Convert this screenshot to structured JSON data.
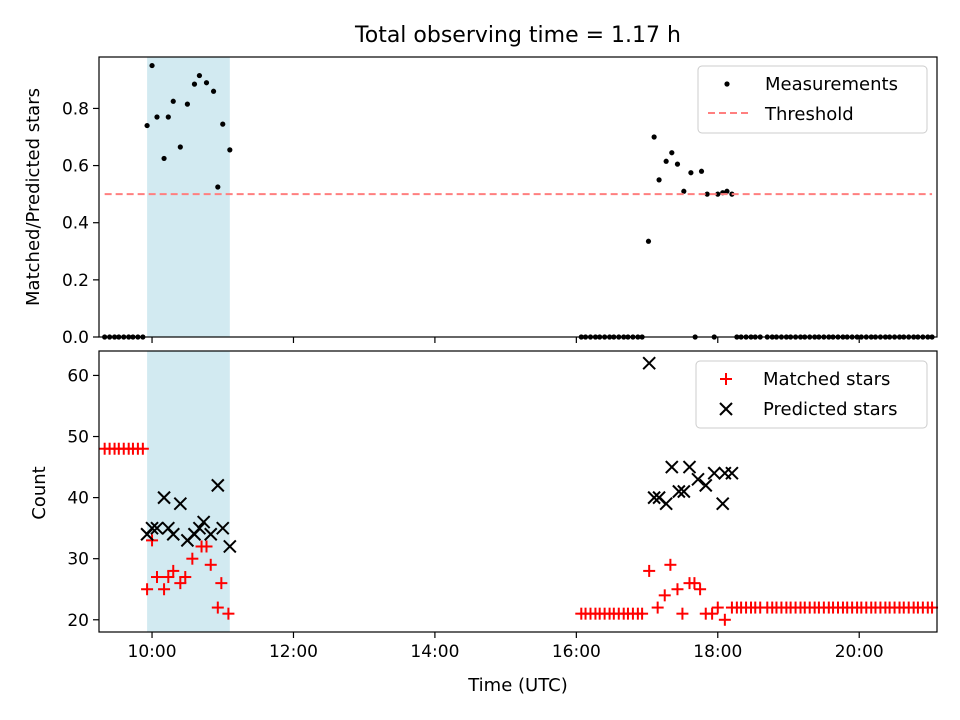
{
  "chart_data": [
    {
      "type": "scatter",
      "title": "Total observing time = 1.17 h",
      "xlabel": "",
      "ylabel": "Matched/Predicted stars",
      "xlim": [
        9.25,
        21.1
      ],
      "ylim": [
        0.0,
        0.98
      ],
      "yticks": [
        0.0,
        0.2,
        0.4,
        0.6,
        0.8
      ],
      "ytick_labels": [
        "0.0",
        "0.2",
        "0.4",
        "0.6",
        "0.8"
      ],
      "grid": false,
      "legend": "top-right",
      "shaded_x_interval": [
        9.93,
        11.1
      ],
      "shade_color": "#add8e6",
      "series": [
        {
          "name": "Measurements",
          "kind": "points",
          "color": "#000000",
          "points": [
            [
              9.33,
              0
            ],
            [
              9.4,
              0
            ],
            [
              9.47,
              0
            ],
            [
              9.53,
              0
            ],
            [
              9.6,
              0
            ],
            [
              9.67,
              0
            ],
            [
              9.73,
              0
            ],
            [
              9.8,
              0
            ],
            [
              9.87,
              0
            ],
            [
              9.93,
              0.74
            ],
            [
              10.0,
              0.95
            ],
            [
              10.07,
              0.77
            ],
            [
              10.17,
              0.625
            ],
            [
              10.23,
              0.77
            ],
            [
              10.3,
              0.825
            ],
            [
              10.4,
              0.665
            ],
            [
              10.5,
              0.815
            ],
            [
              10.6,
              0.885
            ],
            [
              10.67,
              0.915
            ],
            [
              10.77,
              0.89
            ],
            [
              10.87,
              0.86
            ],
            [
              10.93,
              0.525
            ],
            [
              11.0,
              0.745
            ],
            [
              11.1,
              0.655
            ],
            [
              16.07,
              0
            ],
            [
              16.13,
              0
            ],
            [
              16.2,
              0
            ],
            [
              16.27,
              0
            ],
            [
              16.33,
              0
            ],
            [
              16.4,
              0
            ],
            [
              16.47,
              0
            ],
            [
              16.53,
              0
            ],
            [
              16.6,
              0
            ],
            [
              16.67,
              0
            ],
            [
              16.73,
              0
            ],
            [
              16.8,
              0
            ],
            [
              16.87,
              0
            ],
            [
              16.93,
              0
            ],
            [
              17.02,
              0.335
            ],
            [
              17.1,
              0.7
            ],
            [
              17.17,
              0.55
            ],
            [
              17.27,
              0.615
            ],
            [
              17.35,
              0.645
            ],
            [
              17.43,
              0.605
            ],
            [
              17.52,
              0.51
            ],
            [
              17.62,
              0.575
            ],
            [
              17.68,
              0
            ],
            [
              17.77,
              0.58
            ],
            [
              17.85,
              0.5
            ],
            [
              17.95,
              0
            ],
            [
              18.0,
              0.5
            ],
            [
              18.07,
              0.505
            ],
            [
              18.13,
              0.51
            ],
            [
              18.2,
              0.5
            ],
            [
              18.27,
              0
            ],
            [
              18.33,
              0
            ],
            [
              18.4,
              0
            ],
            [
              18.47,
              0
            ],
            [
              18.53,
              0
            ],
            [
              18.6,
              0
            ],
            [
              18.7,
              0
            ],
            [
              18.77,
              0
            ],
            [
              18.83,
              0
            ],
            [
              18.9,
              0
            ],
            [
              18.97,
              0
            ],
            [
              19.03,
              0
            ],
            [
              19.1,
              0
            ],
            [
              19.17,
              0
            ],
            [
              19.23,
              0
            ],
            [
              19.3,
              0
            ],
            [
              19.37,
              0
            ],
            [
              19.43,
              0
            ],
            [
              19.5,
              0
            ],
            [
              19.57,
              0
            ],
            [
              19.63,
              0
            ],
            [
              19.7,
              0
            ],
            [
              19.77,
              0
            ],
            [
              19.83,
              0
            ],
            [
              19.9,
              0
            ],
            [
              19.97,
              0
            ],
            [
              20.03,
              0
            ],
            [
              20.1,
              0
            ],
            [
              20.17,
              0
            ],
            [
              20.23,
              0
            ],
            [
              20.3,
              0
            ],
            [
              20.37,
              0
            ],
            [
              20.43,
              0
            ],
            [
              20.5,
              0
            ],
            [
              20.57,
              0
            ],
            [
              20.63,
              0
            ],
            [
              20.7,
              0
            ],
            [
              20.77,
              0
            ],
            [
              20.83,
              0
            ],
            [
              20.9,
              0
            ],
            [
              20.97,
              0
            ],
            [
              21.03,
              0
            ]
          ]
        },
        {
          "name": "Threshold",
          "kind": "dashed-line",
          "color": "#ff7f7f",
          "points": [
            [
              9.33,
              0.5
            ],
            [
              21.03,
              0.5
            ]
          ]
        }
      ]
    },
    {
      "type": "scatter",
      "title": "",
      "xlabel": "Time (UTC)",
      "ylabel": "Count",
      "xlim": [
        9.25,
        21.1
      ],
      "ylim": [
        18,
        64
      ],
      "yticks": [
        20,
        30,
        40,
        50,
        60
      ],
      "ytick_labels": [
        "20",
        "30",
        "40",
        "50",
        "60"
      ],
      "xticks": [
        10,
        12,
        14,
        16,
        18,
        20
      ],
      "xtick_labels": [
        "10:00",
        "12:00",
        "14:00",
        "16:00",
        "18:00",
        "20:00"
      ],
      "grid": false,
      "legend": "top-right",
      "shaded_x_interval": [
        9.93,
        11.1
      ],
      "shade_color": "#add8e6",
      "series": [
        {
          "name": "Matched stars",
          "kind": "plus",
          "color": "#ff0000",
          "points": [
            [
              9.33,
              48
            ],
            [
              9.4,
              48
            ],
            [
              9.47,
              48
            ],
            [
              9.53,
              48
            ],
            [
              9.6,
              48
            ],
            [
              9.67,
              48
            ],
            [
              9.73,
              48
            ],
            [
              9.8,
              48
            ],
            [
              9.87,
              48
            ],
            [
              9.93,
              25
            ],
            [
              10.0,
              33
            ],
            [
              10.07,
              27
            ],
            [
              10.17,
              25
            ],
            [
              10.23,
              27
            ],
            [
              10.3,
              28
            ],
            [
              10.4,
              26
            ],
            [
              10.47,
              27
            ],
            [
              10.57,
              30
            ],
            [
              10.7,
              32
            ],
            [
              10.77,
              32
            ],
            [
              10.83,
              29
            ],
            [
              10.93,
              22
            ],
            [
              10.98,
              26
            ],
            [
              11.08,
              21
            ],
            [
              16.07,
              21
            ],
            [
              16.13,
              21
            ],
            [
              16.2,
              21
            ],
            [
              16.27,
              21
            ],
            [
              16.33,
              21
            ],
            [
              16.4,
              21
            ],
            [
              16.47,
              21
            ],
            [
              16.53,
              21
            ],
            [
              16.6,
              21
            ],
            [
              16.67,
              21
            ],
            [
              16.73,
              21
            ],
            [
              16.8,
              21
            ],
            [
              16.87,
              21
            ],
            [
              16.93,
              21
            ],
            [
              17.03,
              28
            ],
            [
              17.15,
              22
            ],
            [
              17.25,
              24
            ],
            [
              17.33,
              29
            ],
            [
              17.43,
              25
            ],
            [
              17.5,
              21
            ],
            [
              17.6,
              26
            ],
            [
              17.67,
              26
            ],
            [
              17.75,
              25
            ],
            [
              17.83,
              21
            ],
            [
              17.92,
              21
            ],
            [
              18.0,
              22
            ],
            [
              18.1,
              20
            ],
            [
              18.2,
              22
            ],
            [
              18.27,
              22
            ],
            [
              18.33,
              22
            ],
            [
              18.4,
              22
            ],
            [
              18.47,
              22
            ],
            [
              18.53,
              22
            ],
            [
              18.6,
              22
            ],
            [
              18.7,
              22
            ],
            [
              18.77,
              22
            ],
            [
              18.83,
              22
            ],
            [
              18.9,
              22
            ],
            [
              18.97,
              22
            ],
            [
              19.03,
              22
            ],
            [
              19.1,
              22
            ],
            [
              19.17,
              22
            ],
            [
              19.23,
              22
            ],
            [
              19.3,
              22
            ],
            [
              19.37,
              22
            ],
            [
              19.43,
              22
            ],
            [
              19.5,
              22
            ],
            [
              19.57,
              22
            ],
            [
              19.63,
              22
            ],
            [
              19.7,
              22
            ],
            [
              19.77,
              22
            ],
            [
              19.83,
              22
            ],
            [
              19.9,
              22
            ],
            [
              19.97,
              22
            ],
            [
              20.03,
              22
            ],
            [
              20.1,
              22
            ],
            [
              20.17,
              22
            ],
            [
              20.23,
              22
            ],
            [
              20.3,
              22
            ],
            [
              20.37,
              22
            ],
            [
              20.43,
              22
            ],
            [
              20.5,
              22
            ],
            [
              20.57,
              22
            ],
            [
              20.63,
              22
            ],
            [
              20.7,
              22
            ],
            [
              20.77,
              22
            ],
            [
              20.83,
              22
            ],
            [
              20.9,
              22
            ],
            [
              20.97,
              22
            ],
            [
              21.03,
              22
            ]
          ]
        },
        {
          "name": "Predicted stars",
          "kind": "x",
          "color": "#000000",
          "points": [
            [
              9.93,
              34
            ],
            [
              10.0,
              35
            ],
            [
              10.07,
              35
            ],
            [
              10.17,
              40
            ],
            [
              10.23,
              35
            ],
            [
              10.3,
              34
            ],
            [
              10.4,
              39
            ],
            [
              10.5,
              33
            ],
            [
              10.6,
              34
            ],
            [
              10.67,
              35
            ],
            [
              10.73,
              36
            ],
            [
              10.83,
              34
            ],
            [
              10.93,
              42
            ],
            [
              11.0,
              35
            ],
            [
              11.1,
              32
            ],
            [
              17.03,
              62
            ],
            [
              17.1,
              40
            ],
            [
              17.17,
              40
            ],
            [
              17.27,
              39
            ],
            [
              17.35,
              45
            ],
            [
              17.45,
              41
            ],
            [
              17.52,
              41
            ],
            [
              17.6,
              45
            ],
            [
              17.72,
              43
            ],
            [
              17.83,
              42
            ],
            [
              17.95,
              44
            ],
            [
              18.07,
              39
            ],
            [
              18.1,
              44
            ],
            [
              18.2,
              44
            ]
          ]
        }
      ]
    }
  ]
}
